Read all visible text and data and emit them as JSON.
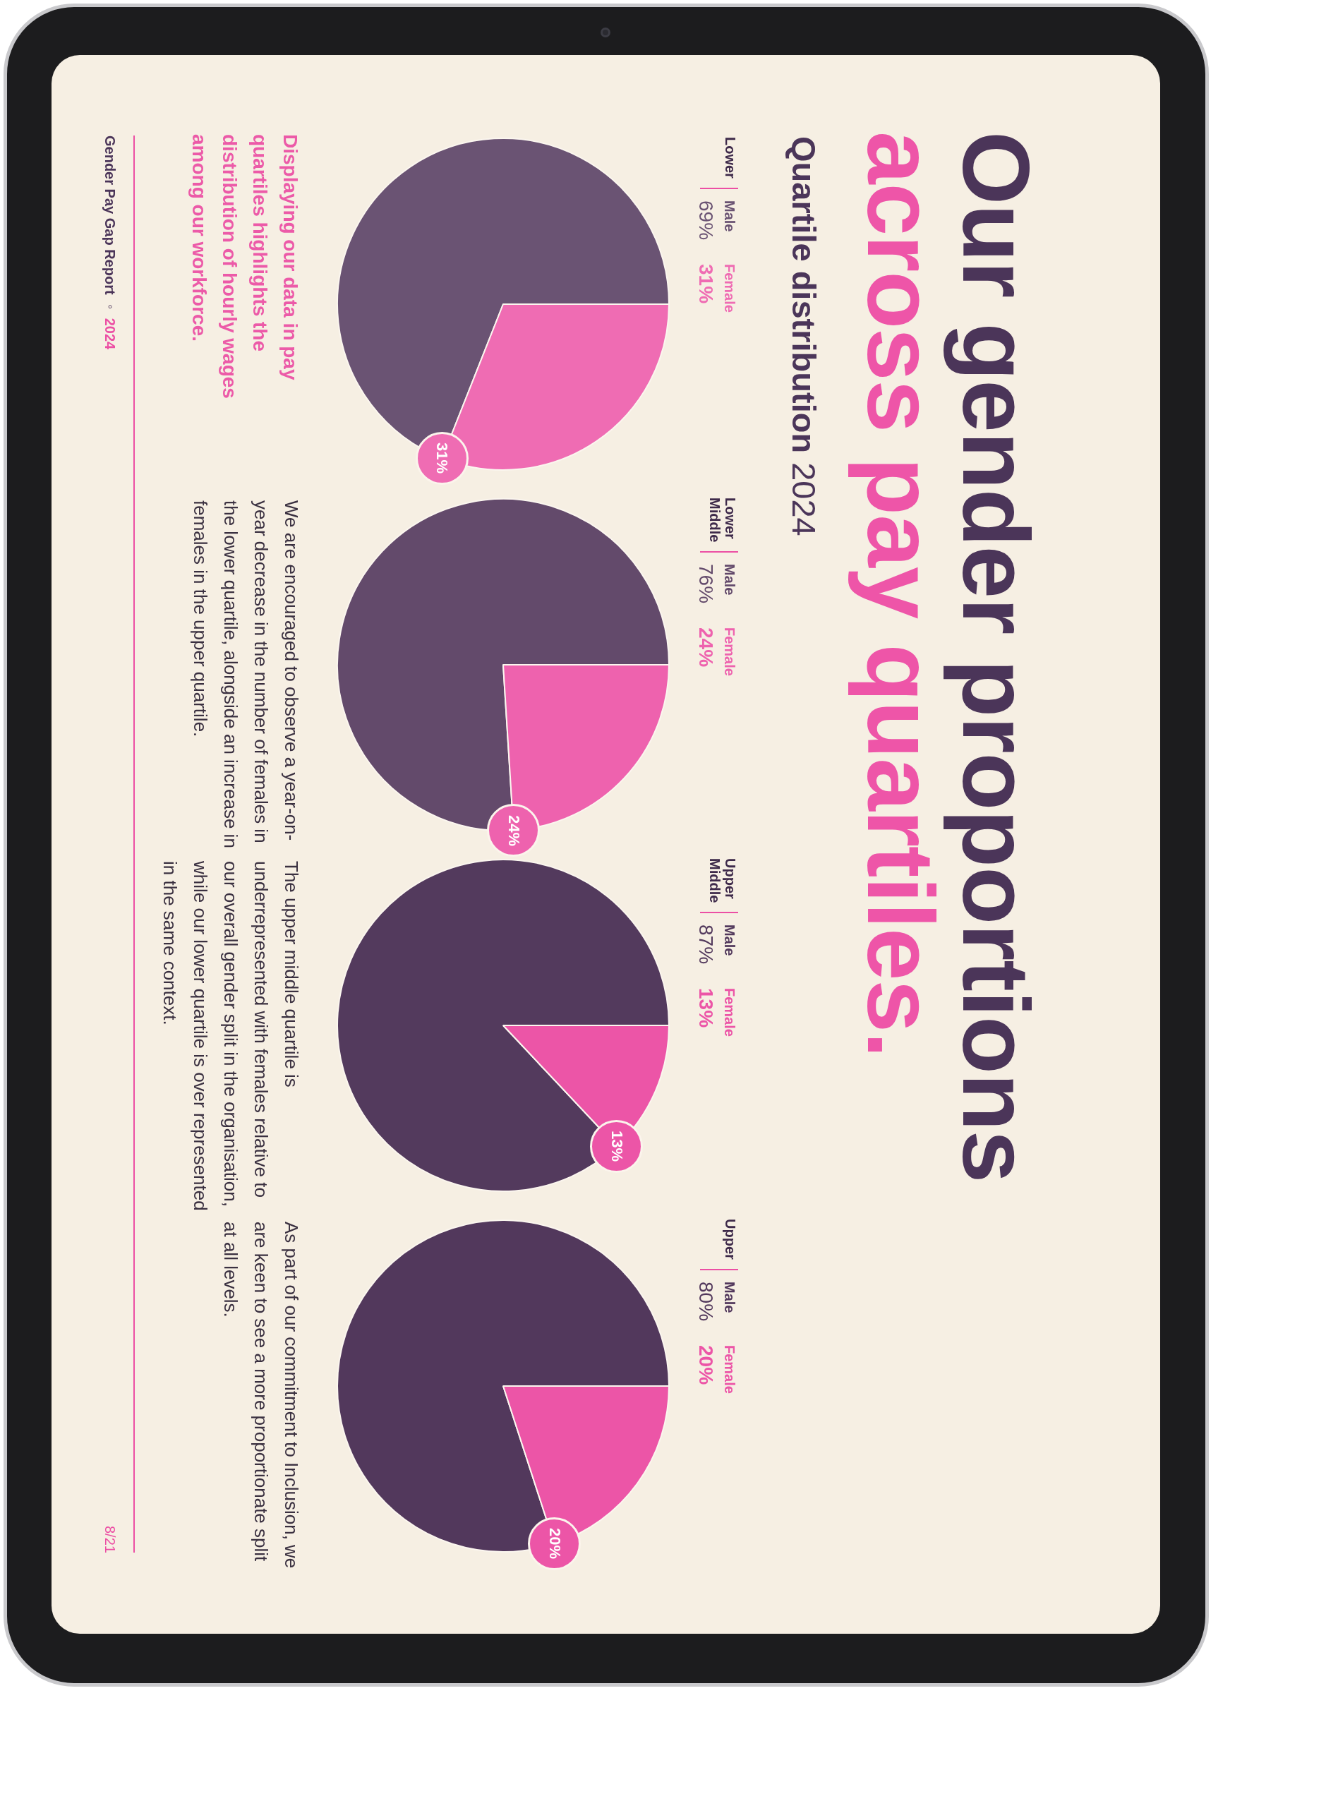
{
  "chart_data": [
    {
      "type": "other",
      "title": "Our gender proportions\nacross pay quartiles.",
      "subtitle": "Quartile distribution 2024",
      "annotations": [
        "Displaying our data in pay quartiles highlights the distribution of hourly wages among our workforce.",
        "Gender Pay Gap Report ◦ 2024",
        "8/21"
      ]
    },
    {
      "type": "pie",
      "title": "Lower",
      "categories": [
        "Male",
        "Female"
      ],
      "values": [
        69,
        31
      ],
      "colors": [
        "#6a5373",
        "#ef6cb3"
      ],
      "value_labels": [
        "69%",
        "31%"
      ],
      "annotations": [
        {
          "text": "31%",
          "x": "Female"
        }
      ]
    },
    {
      "type": "pie",
      "title": "Lower Middle",
      "categories": [
        "Male",
        "Female"
      ],
      "values": [
        76,
        24
      ],
      "colors": [
        "#634a6b",
        "#ee62ae"
      ],
      "value_labels": [
        "76%",
        "24%"
      ],
      "annotations": [
        {
          "text": "24%",
          "x": "Female"
        },
        "We are encouraged to observe a year-on-year decrease in the number of females in the lower quartile, alongside an increase in females in the upper quartile."
      ]
    },
    {
      "type": "pie",
      "title": "Upper Middle",
      "categories": [
        "Male",
        "Female"
      ],
      "values": [
        87,
        13
      ],
      "colors": [
        "#533a5d",
        "#ec55a7"
      ],
      "value_labels": [
        "87%",
        "13%"
      ],
      "annotations": [
        {
          "text": "13%",
          "x": "Female"
        },
        "The upper middle quartile is underrepresented with females relative to our overall gender split in the organisation, while our lower quartile is over represented in the same context."
      ]
    },
    {
      "type": "pie",
      "title": "Upper",
      "categories": [
        "Male",
        "Female"
      ],
      "values": [
        80,
        20
      ],
      "colors": [
        "#52385c",
        "#ec55a7"
      ],
      "value_labels": [
        "80%",
        "20%"
      ],
      "annotations": [
        {
          "text": "20%",
          "x": "Female"
        },
        "As part of our commitment to Inclusion, we are keen to see a more proportionate split at all levels."
      ]
    }
  ]
}
